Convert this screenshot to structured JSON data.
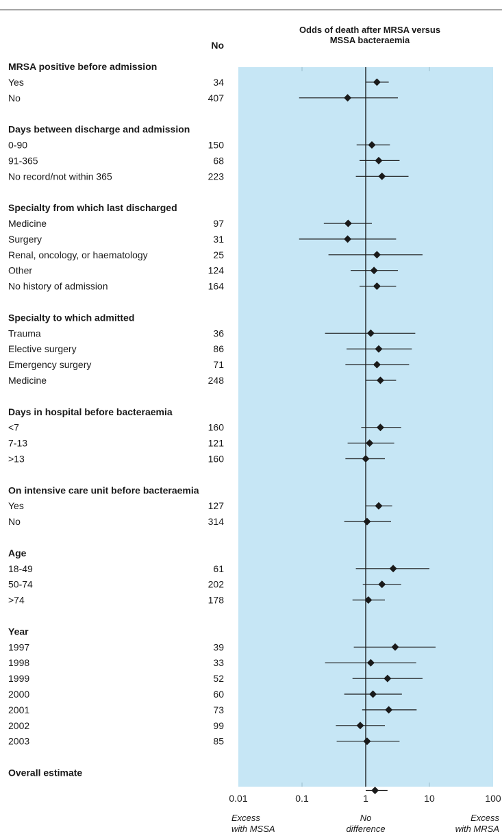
{
  "chart_data": {
    "type": "forest",
    "title": "Odds of death after MRSA versus\nMSSA bacteraemia",
    "count_header": "No",
    "x_scale": "log",
    "xlim": [
      0.01,
      100
    ],
    "x_ticks": [
      "0.01",
      "0.1",
      "1",
      "10",
      "100"
    ],
    "reference_line": 1,
    "annotations": {
      "left": "Excess\nwith MSSA",
      "center": "No\ndifference",
      "right": "Excess\nwith MRSA"
    },
    "colors": {
      "plot_background": "#c6e6f5",
      "marker": "#1a1a1a"
    },
    "groups": [
      {
        "label": "MRSA positive before admission",
        "rows": [
          {
            "label": "Yes",
            "n": "34",
            "or": 1.5,
            "lo": 1.0,
            "hi": 2.3
          },
          {
            "label": "No",
            "n": "407",
            "or": 0.52,
            "lo": 0.09,
            "hi": 3.2
          }
        ]
      },
      {
        "label": "Days between discharge and admission",
        "rows": [
          {
            "label": "0-90",
            "n": "150",
            "or": 1.25,
            "lo": 0.72,
            "hi": 2.4
          },
          {
            "label": "91-365",
            "n": "68",
            "or": 1.6,
            "lo": 0.8,
            "hi": 3.4
          },
          {
            "label": "No record/not within 365",
            "n": "223",
            "or": 1.8,
            "lo": 0.7,
            "hi": 4.7
          }
        ]
      },
      {
        "label": "Specialty from which last discharged",
        "rows": [
          {
            "label": "Medicine",
            "n": "97",
            "or": 0.53,
            "lo": 0.22,
            "hi": 1.25
          },
          {
            "label": "Surgery",
            "n": "31",
            "or": 0.52,
            "lo": 0.09,
            "hi": 3.0
          },
          {
            "label": "Renal, oncology, or haematology",
            "n": "25",
            "or": 1.5,
            "lo": 0.26,
            "hi": 7.8
          },
          {
            "label": "Other",
            "n": "124",
            "or": 1.35,
            "lo": 0.58,
            "hi": 3.2
          },
          {
            "label": "No history of admission",
            "n": "164",
            "or": 1.5,
            "lo": 0.8,
            "hi": 3.0
          }
        ]
      },
      {
        "label": "Specialty to which admitted",
        "rows": [
          {
            "label": "Trauma",
            "n": "36",
            "or": 1.2,
            "lo": 0.23,
            "hi": 6.0
          },
          {
            "label": "Elective surgery",
            "n": "86",
            "or": 1.6,
            "lo": 0.5,
            "hi": 5.3
          },
          {
            "label": "Emergency surgery",
            "n": "71",
            "or": 1.5,
            "lo": 0.48,
            "hi": 4.8
          },
          {
            "label": "Medicine",
            "n": "248",
            "or": 1.7,
            "lo": 1.0,
            "hi": 3.0
          }
        ]
      },
      {
        "label": "Days in hospital before bacteraemia",
        "rows": [
          {
            "label": "<7",
            "n": "160",
            "or": 1.7,
            "lo": 0.85,
            "hi": 3.6
          },
          {
            "label": "7-13",
            "n": "121",
            "or": 1.15,
            "lo": 0.52,
            "hi": 2.8
          },
          {
            "label": ">13",
            "n": "160",
            "or": 1.0,
            "lo": 0.48,
            "hi": 2.0
          }
        ]
      },
      {
        "label": "On intensive care unit before bacteraemia",
        "rows": [
          {
            "label": "Yes",
            "n": "127",
            "or": 1.6,
            "lo": 1.0,
            "hi": 2.6
          },
          {
            "label": "No",
            "n": "314",
            "or": 1.05,
            "lo": 0.46,
            "hi": 2.5
          }
        ]
      },
      {
        "label": "Age",
        "rows": [
          {
            "label": "18-49",
            "n": "61",
            "or": 2.7,
            "lo": 0.7,
            "hi": 10.0
          },
          {
            "label": "50-74",
            "n": "202",
            "or": 1.8,
            "lo": 0.9,
            "hi": 3.6
          },
          {
            "label": ">74",
            "n": "178",
            "or": 1.1,
            "lo": 0.62,
            "hi": 2.0
          }
        ]
      },
      {
        "label": "Year",
        "rows": [
          {
            "label": "1997",
            "n": "39",
            "or": 2.9,
            "lo": 0.65,
            "hi": 12.5
          },
          {
            "label": "1998",
            "n": "33",
            "or": 1.2,
            "lo": 0.23,
            "hi": 6.2
          },
          {
            "label": "1999",
            "n": "52",
            "or": 2.2,
            "lo": 0.62,
            "hi": 7.8
          },
          {
            "label": "2000",
            "n": "60",
            "or": 1.3,
            "lo": 0.46,
            "hi": 3.7
          },
          {
            "label": "2001",
            "n": "73",
            "or": 2.3,
            "lo": 0.88,
            "hi": 6.3
          },
          {
            "label": "2002",
            "n": "99",
            "or": 0.82,
            "lo": 0.34,
            "hi": 2.0
          },
          {
            "label": "2003",
            "n": "85",
            "or": 1.05,
            "lo": 0.35,
            "hi": 3.4
          }
        ]
      },
      {
        "label": "Overall estimate",
        "rows": [
          {
            "label": "",
            "n": "",
            "or": 1.4,
            "lo": 1.0,
            "hi": 2.2
          }
        ]
      }
    ]
  }
}
